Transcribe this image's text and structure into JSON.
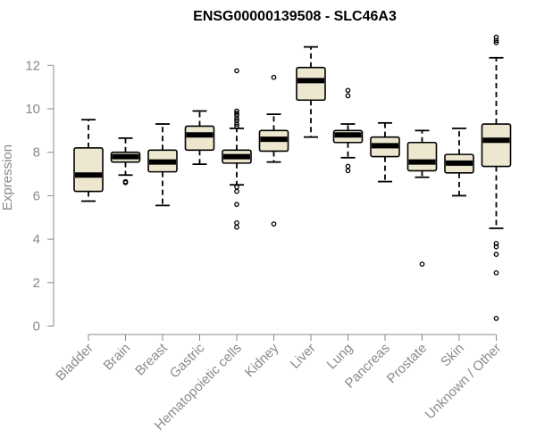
{
  "chart_data": {
    "type": "boxplot",
    "title": "ENSG00000139508 - SLC46A3",
    "xlabel": "",
    "ylabel": "Expression",
    "ylim": [
      0,
      13.2
    ],
    "yticks": [
      0,
      2,
      4,
      6,
      8,
      10,
      12
    ],
    "grid": false,
    "box_color": "#ede7d0",
    "axis_color": "#8a8a8a",
    "categories": [
      "Bladder",
      "Brain",
      "Breast",
      "Gastric",
      "Hematopoietic cells",
      "Kidney",
      "Liver",
      "Lung",
      "Pancreas",
      "Prostate",
      "Skin",
      "Unknown / Other"
    ],
    "boxes": [
      {
        "category": "Bladder",
        "q1": 6.2,
        "median": 6.95,
        "q3": 8.2,
        "whisker_low": 5.75,
        "whisker_high": 9.5,
        "outliers": []
      },
      {
        "category": "Brain",
        "q1": 7.55,
        "median": 7.8,
        "q3": 8.0,
        "whisker_low": 6.95,
        "whisker_high": 8.65,
        "outliers": [
          6.6,
          6.65
        ]
      },
      {
        "category": "Breast",
        "q1": 7.1,
        "median": 7.55,
        "q3": 8.1,
        "whisker_low": 5.55,
        "whisker_high": 9.3,
        "outliers": []
      },
      {
        "category": "Gastric",
        "q1": 8.1,
        "median": 8.8,
        "q3": 9.2,
        "whisker_low": 7.45,
        "whisker_high": 9.9,
        "outliers": []
      },
      {
        "category": "Hematopoietic cells",
        "q1": 7.5,
        "median": 7.8,
        "q3": 8.1,
        "whisker_low": 6.5,
        "whisker_high": 9.1,
        "outliers": [
          11.75,
          9.9,
          9.8,
          9.7,
          9.55,
          9.45,
          9.3,
          9.2,
          6.4,
          6.2,
          5.6,
          4.75,
          4.55
        ]
      },
      {
        "category": "Kidney",
        "q1": 8.05,
        "median": 8.6,
        "q3": 9.0,
        "whisker_low": 7.55,
        "whisker_high": 9.75,
        "outliers": [
          11.45,
          4.7
        ]
      },
      {
        "category": "Liver",
        "q1": 10.4,
        "median": 11.3,
        "q3": 11.9,
        "whisker_low": 8.7,
        "whisker_high": 12.85,
        "outliers": []
      },
      {
        "category": "Lung",
        "q1": 8.45,
        "median": 8.8,
        "q3": 9.0,
        "whisker_low": 7.75,
        "whisker_high": 9.3,
        "outliers": [
          10.85,
          10.6,
          7.35,
          7.15
        ]
      },
      {
        "category": "Pancreas",
        "q1": 7.8,
        "median": 8.3,
        "q3": 8.7,
        "whisker_low": 6.65,
        "whisker_high": 9.35,
        "outliers": []
      },
      {
        "category": "Prostate",
        "q1": 7.15,
        "median": 7.55,
        "q3": 8.45,
        "whisker_low": 6.85,
        "whisker_high": 9.0,
        "outliers": [
          2.85
        ]
      },
      {
        "category": "Skin",
        "q1": 7.05,
        "median": 7.5,
        "q3": 7.9,
        "whisker_low": 6.0,
        "whisker_high": 9.1,
        "outliers": []
      },
      {
        "category": "Unknown / Other",
        "q1": 7.35,
        "median": 8.55,
        "q3": 9.3,
        "whisker_low": 4.5,
        "whisker_high": 12.35,
        "outliers": [
          13.3,
          13.15,
          13.05,
          3.8,
          3.65,
          3.3,
          2.45,
          0.35
        ]
      }
    ]
  }
}
